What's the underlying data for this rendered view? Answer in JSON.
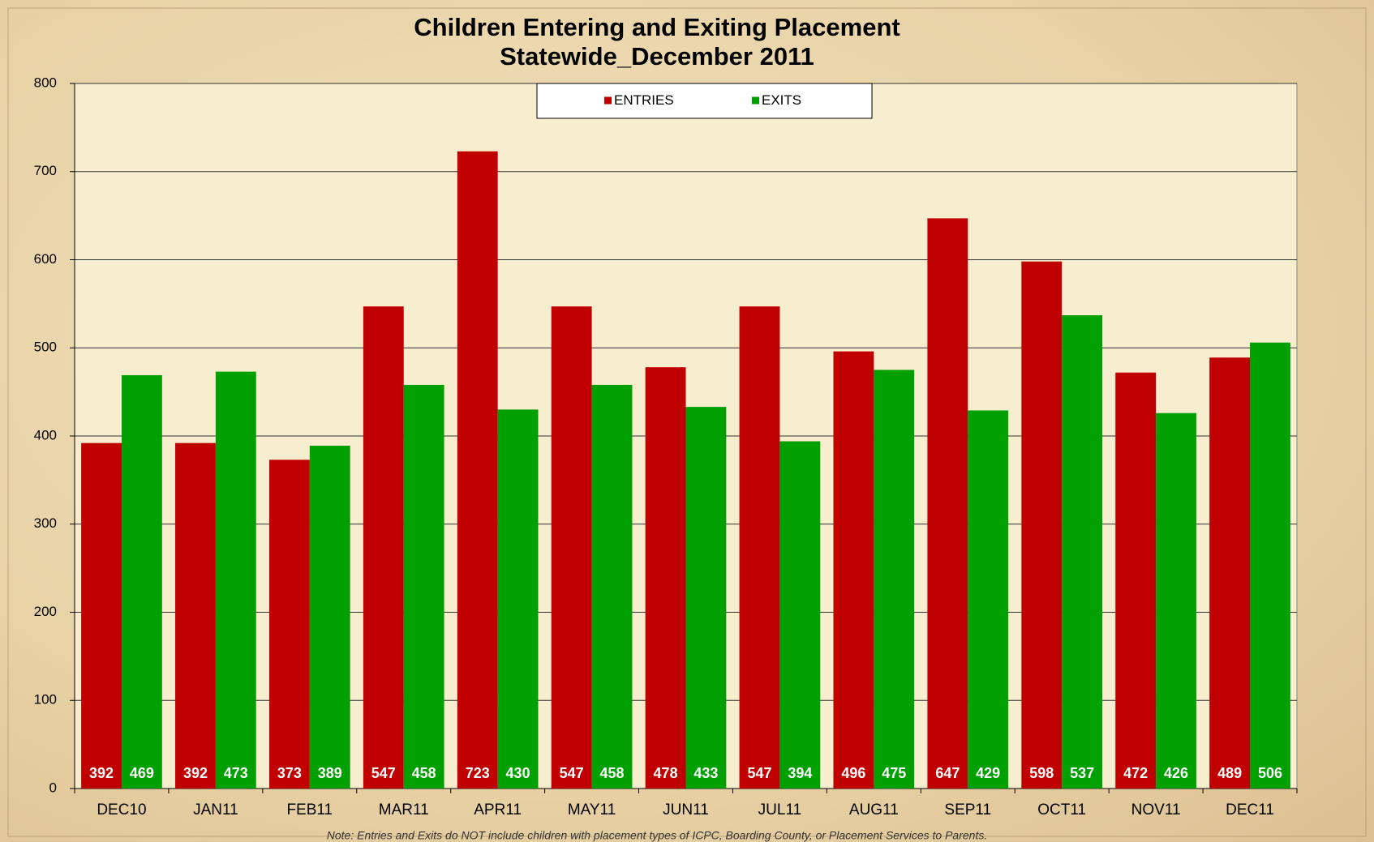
{
  "chart_data": {
    "type": "bar",
    "title": "Children Entering and Exiting Placement",
    "subtitle": "Statewide_December 2011",
    "note": "Note: Entries and Exits do NOT include children with placement types of ICPC, Boarding County, or Placement Services to Parents.",
    "categories": [
      "DEC10",
      "JAN11",
      "FEB11",
      "MAR11",
      "APR11",
      "MAY11",
      "JUN11",
      "JUL11",
      "AUG11",
      "SEP11",
      "OCT11",
      "NOV11",
      "DEC11"
    ],
    "series": [
      {
        "name": "ENTRIES",
        "color": "#c00000",
        "values": [
          392,
          392,
          373,
          547,
          723,
          547,
          478,
          547,
          496,
          647,
          598,
          472,
          489
        ]
      },
      {
        "name": "EXITS",
        "color": "#00a000",
        "values": [
          469,
          473,
          389,
          458,
          430,
          458,
          433,
          394,
          475,
          429,
          537,
          426,
          506
        ]
      }
    ],
    "ylim": [
      0,
      800
    ],
    "yticks": [
      0,
      100,
      200,
      300,
      400,
      500,
      600,
      700,
      800
    ],
    "grid": true,
    "legend": "top"
  }
}
